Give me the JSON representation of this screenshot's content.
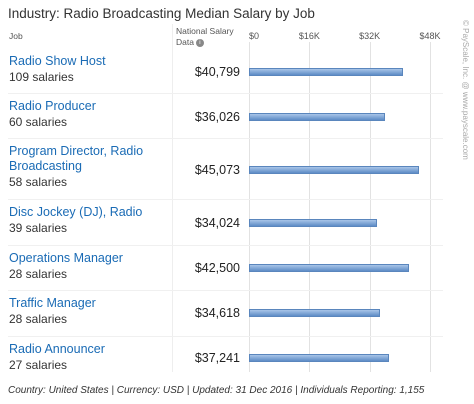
{
  "chart_data": {
    "type": "bar",
    "orientation": "horizontal",
    "title": "Industry: Radio Broadcasting Median Salary by Job",
    "category_header": "Job",
    "value_header": "National Salary Data",
    "categories": [
      "Radio Show Host",
      "Radio Producer",
      "Program Director, Radio Broadcasting",
      "Disc Jockey (DJ), Radio",
      "Operations Manager",
      "Traffic Manager",
      "Radio Announcer"
    ],
    "salary_counts": [
      "109 salaries",
      "60 salaries",
      "58 salaries",
      "39 salaries",
      "28 salaries",
      "28 salaries",
      "27 salaries"
    ],
    "values": [
      40799,
      36026,
      45073,
      34024,
      42500,
      34618,
      37241
    ],
    "value_labels": [
      "$40,799",
      "$36,026",
      "$45,073",
      "$34,024",
      "$42,500",
      "$34,618",
      "$37,241"
    ],
    "color": "#7aa3d6",
    "xlim": [
      0,
      48000
    ],
    "xticks": [
      {
        "value": 0,
        "label": "$0"
      },
      {
        "value": 16000,
        "label": "$16K"
      },
      {
        "value": 32000,
        "label": "$32K"
      },
      {
        "value": 48000,
        "label": "$48K"
      }
    ],
    "grid": true,
    "footer": "Country: United States | Currency: USD | Updated: 31 Dec 2016 | Individuals Reporting: 1,155",
    "watermark": "© PayScale, Inc. @ www.payscale.com"
  }
}
